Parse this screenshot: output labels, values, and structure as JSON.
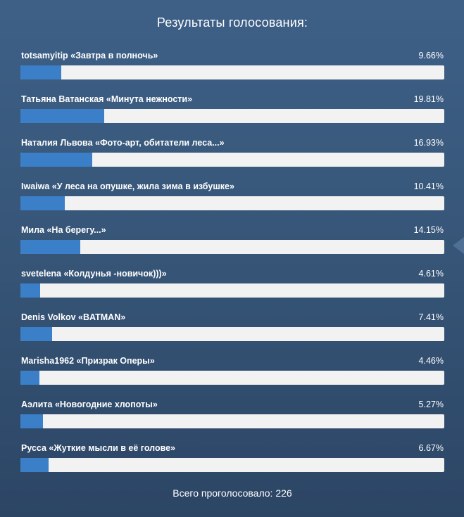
{
  "poll": {
    "title": "Результаты голосования:",
    "total_text": "Всего проголосовало: 226",
    "colors": {
      "bar_fill": "#3a7fc7",
      "bar_track": "#f2f2f2",
      "background": "#365577"
    },
    "options": [
      {
        "label": "totsamyitip «Завтра в полночь»",
        "percent_text": "9.66%",
        "percent": 9.66
      },
      {
        "label": "Татьяна Ватанская «Минута нежности»",
        "percent_text": "19.81%",
        "percent": 19.81
      },
      {
        "label": "Наталия Львова «Фото-арт, обитатели леса...»",
        "percent_text": "16.93%",
        "percent": 16.93
      },
      {
        "label": "Iwaiwa «У леса на опушке, жила зима в избушке»",
        "percent_text": "10.41%",
        "percent": 10.41
      },
      {
        "label": "Мила «На берегу...»",
        "percent_text": "14.15%",
        "percent": 14.15
      },
      {
        "label": "svetelena «Колдунья -новичок)))»",
        "percent_text": "4.61%",
        "percent": 4.61
      },
      {
        "label": "Denis Volkov «BATMAN»",
        "percent_text": "7.41%",
        "percent": 7.41
      },
      {
        "label": "Marisha1962 «Призрак Оперы»",
        "percent_text": "4.46%",
        "percent": 4.46
      },
      {
        "label": "Аэлита «Новогодние хлопоты»",
        "percent_text": "5.27%",
        "percent": 5.27
      },
      {
        "label": "Русса «Жуткие мысли в её голове»",
        "percent_text": "6.67%",
        "percent": 6.67
      }
    ]
  },
  "side_arrow_icon": "arrow-left-icon"
}
